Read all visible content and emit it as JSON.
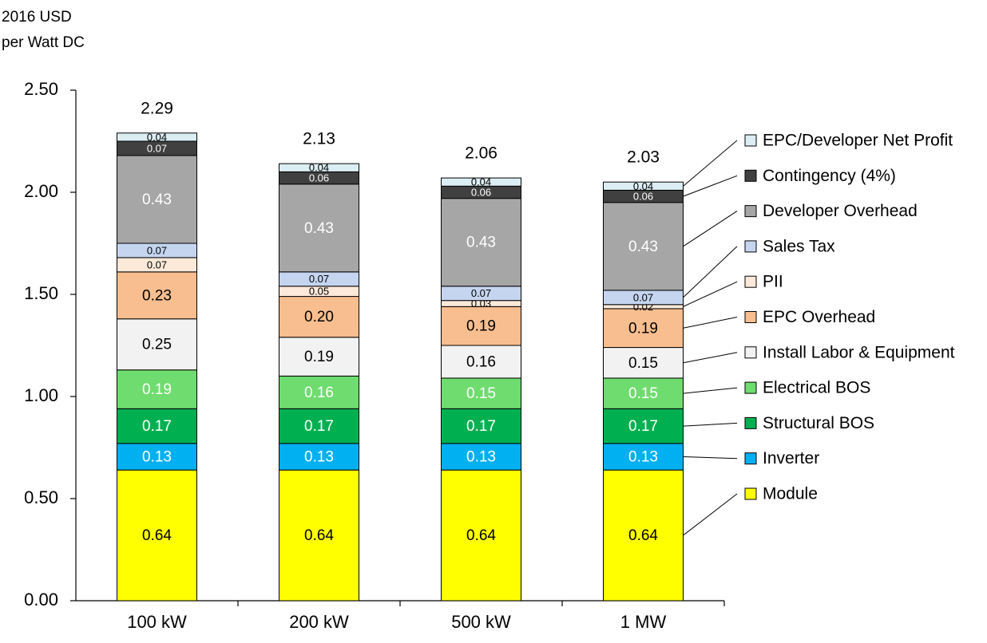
{
  "chart_data": {
    "type": "stacked_bar",
    "ylabel": [
      "2016 USD",
      "per Watt DC"
    ],
    "categories": [
      "100 kW",
      "200 kW",
      "500 kW",
      "1 MW"
    ],
    "ylim": [
      0,
      2.5
    ],
    "yticks": [
      {
        "value": 0,
        "label": "0.00"
      },
      {
        "value": 0.5,
        "label": "0.50"
      },
      {
        "value": 1,
        "label": "1.00"
      },
      {
        "value": 1.5,
        "label": "1.50"
      },
      {
        "value": 2,
        "label": "2.00"
      },
      {
        "value": 2.5,
        "label": "2.50"
      }
    ],
    "totals": [
      2.29,
      2.13,
      2.06,
      2.03
    ],
    "series": [
      {
        "name": "Module",
        "color": "#ffff00",
        "values": [
          0.64,
          0.64,
          0.64,
          0.64
        ],
        "value_labels": [
          "0.64",
          "0.64",
          "0.64",
          "0.64"
        ]
      },
      {
        "name": "Inverter",
        "color": "#00b0f0",
        "values": [
          0.13,
          0.13,
          0.13,
          0.13
        ],
        "value_labels": [
          "0.13",
          "0.13",
          "0.13",
          "0.13"
        ]
      },
      {
        "name": "Structural BOS",
        "color": "#00b050",
        "values": [
          0.17,
          0.17,
          0.17,
          0.17
        ],
        "value_labels": [
          "0.17",
          "0.17",
          "0.17",
          "0.17"
        ]
      },
      {
        "name": "Electrical BOS",
        "color": "#6fdc6f",
        "values": [
          0.19,
          0.16,
          0.15,
          0.15
        ],
        "value_labels": [
          "0.19",
          "0.16",
          "0.15",
          "0.15"
        ]
      },
      {
        "name": "Install Labor & Equipment",
        "color": "#f2f2f2",
        "values": [
          0.25,
          0.19,
          0.16,
          0.15
        ],
        "value_labels": [
          "0.25",
          "0.19",
          "0.16",
          "0.15"
        ]
      },
      {
        "name": "EPC Overhead",
        "color": "#f9be8f",
        "values": [
          0.23,
          0.2,
          0.19,
          0.19
        ],
        "value_labels": [
          "0.23",
          "0.20",
          "0.19",
          "0.19"
        ]
      },
      {
        "name": "PII",
        "color": "#fde9d9",
        "values": [
          0.07,
          0.05,
          0.03,
          0.02
        ],
        "value_labels": [
          "0.07",
          "0.05",
          "0.03",
          "0.02"
        ]
      },
      {
        "name": "Sales Tax",
        "color": "#c5d5f0",
        "values": [
          0.07,
          0.07,
          0.07,
          0.07
        ],
        "value_labels": [
          "0.07",
          "0.07",
          "0.07",
          "0.07"
        ]
      },
      {
        "name": "Developer Overhead",
        "color": "#a6a6a6",
        "values": [
          0.43,
          0.43,
          0.43,
          0.43
        ],
        "value_labels": [
          "0.43",
          "0.43",
          "0.43",
          "0.43"
        ]
      },
      {
        "name": "Contingency (4%)",
        "color": "#404040",
        "values": [
          0.07,
          0.06,
          0.06,
          0.06
        ],
        "value_labels": [
          "0.07",
          "0.06",
          "0.06",
          "0.06"
        ]
      },
      {
        "name": "EPC/Developer Net Profit",
        "color": "#dbeef4",
        "values": [
          0.04,
          0.04,
          0.04,
          0.04
        ],
        "value_labels": [
          "0.04",
          "0.04",
          "0.04",
          "0.04"
        ]
      }
    ]
  }
}
